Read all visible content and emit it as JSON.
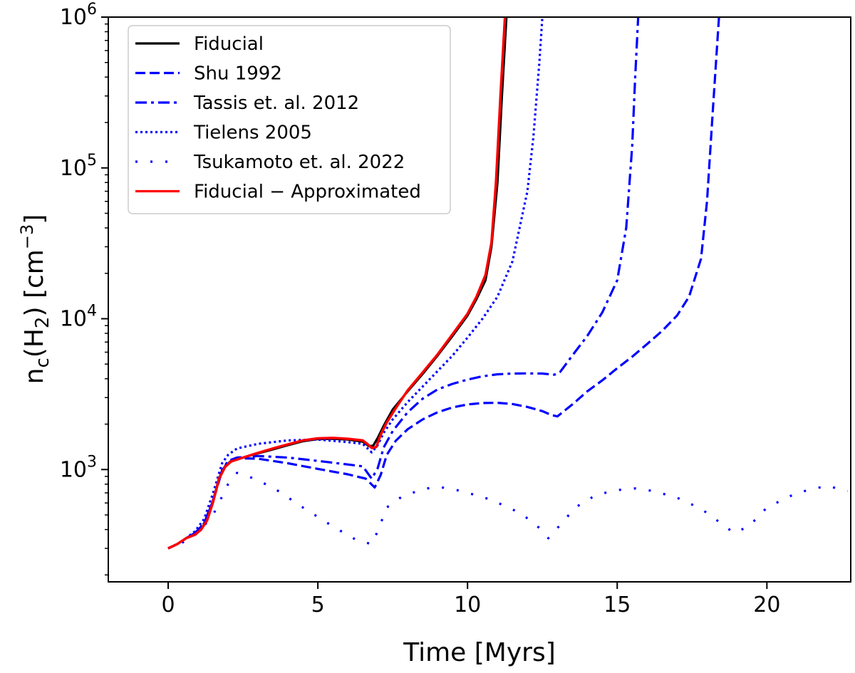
{
  "chart_data": {
    "type": "line",
    "title": "",
    "xlabel": "Time [Myrs]",
    "ylabel_main": "n",
    "ylabel_sub": "c",
    "ylabel_mid": "(H",
    "ylabel_mid_sub": "2",
    "ylabel_tail": ") [cm",
    "ylabel_sup": "−3",
    "ylabel_end": "]",
    "yscale": "log",
    "xlim": [
      -2,
      22.8
    ],
    "ylim": [
      180,
      1000000
    ],
    "grid": false,
    "legend_position": "top-left",
    "xticks": [
      0,
      5,
      10,
      15,
      20
    ],
    "xtick_labels": [
      "0",
      "5",
      "10",
      "15",
      "20"
    ],
    "yticks_major": [
      1000,
      10000,
      100000,
      1000000
    ],
    "ytick_labels": [
      {
        "base": "10",
        "exp": "3"
      },
      {
        "base": "10",
        "exp": "4"
      },
      {
        "base": "10",
        "exp": "5"
      },
      {
        "base": "10",
        "exp": "6"
      }
    ],
    "series": [
      {
        "name": "Fiducial",
        "color": "#000000",
        "style": "solid",
        "x": [
          0,
          0.3,
          0.6,
          0.9,
          1.1,
          1.3,
          1.5,
          1.7,
          1.9,
          2.1,
          2.5,
          3.0,
          3.5,
          4.0,
          4.5,
          5.0,
          5.5,
          6.0,
          6.5,
          6.7,
          6.85,
          7.0,
          7.2,
          7.5,
          8.0,
          8.5,
          9.0,
          9.5,
          10.0,
          10.3,
          10.6,
          10.8,
          11.0,
          11.15,
          11.3
        ],
        "y": [
          300,
          320,
          350,
          370,
          400,
          470,
          620,
          880,
          1050,
          1140,
          1200,
          1280,
          1360,
          1450,
          1540,
          1590,
          1600,
          1580,
          1530,
          1430,
          1440,
          1620,
          1950,
          2500,
          3300,
          4300,
          5700,
          7700,
          10500,
          13500,
          18000,
          30000,
          80000,
          300000,
          1000000
        ]
      },
      {
        "name": "Shu 1992",
        "color": "#0000ff",
        "style": "dashed",
        "x": [
          0,
          0.3,
          0.6,
          0.9,
          1.2,
          1.5,
          1.8,
          2.0,
          2.3,
          3.0,
          4.0,
          5.0,
          6.0,
          6.6,
          6.9,
          7.1,
          7.3,
          7.6,
          8.0,
          8.5,
          9.0,
          9.5,
          10.0,
          10.5,
          11.0,
          11.5,
          12.0,
          12.5,
          12.8,
          13.0,
          13.5,
          14.0,
          14.5,
          15.0,
          15.5,
          16.0,
          16.5,
          17.0,
          17.4,
          17.8,
          18.0,
          18.2,
          18.4
        ],
        "y": [
          300,
          320,
          350,
          380,
          440,
          620,
          980,
          1130,
          1190,
          1180,
          1100,
          1010,
          930,
          870,
          760,
          920,
          1250,
          1550,
          1850,
          2150,
          2400,
          2580,
          2700,
          2760,
          2770,
          2720,
          2600,
          2440,
          2300,
          2250,
          2700,
          3300,
          3900,
          4700,
          5600,
          6800,
          8300,
          10500,
          14000,
          25000,
          60000,
          250000,
          1000000
        ]
      },
      {
        "name": "Tassis et. al. 2012",
        "color": "#0000ff",
        "style": "dashdot",
        "x": [
          0,
          0.3,
          0.6,
          0.9,
          1.2,
          1.5,
          1.8,
          2.0,
          2.3,
          3.0,
          4.0,
          5.0,
          6.0,
          6.5,
          6.8,
          7.0,
          7.2,
          7.5,
          8.0,
          8.5,
          9.0,
          9.5,
          10.0,
          10.5,
          11.0,
          11.5,
          12.0,
          12.5,
          12.9,
          13.1,
          13.5,
          14.0,
          14.5,
          15.0,
          15.3,
          15.5,
          15.6,
          15.7
        ],
        "y": [
          300,
          320,
          350,
          380,
          440,
          630,
          990,
          1140,
          1200,
          1230,
          1200,
          1140,
          1080,
          1050,
          870,
          1020,
          1400,
          1800,
          2400,
          2950,
          3400,
          3700,
          3950,
          4150,
          4280,
          4330,
          4340,
          4330,
          4250,
          4450,
          5700,
          7700,
          11000,
          18000,
          40000,
          140000,
          400000,
          1000000
        ]
      },
      {
        "name": "Tielens 2005",
        "color": "#0000ff",
        "style": "dotted",
        "x": [
          0,
          0.3,
          0.6,
          0.9,
          1.2,
          1.5,
          1.8,
          2.0,
          2.3,
          3.0,
          4.0,
          5.0,
          6.0,
          6.5,
          6.8,
          7.0,
          7.2,
          7.5,
          8.0,
          8.5,
          9.0,
          9.5,
          10.0,
          10.5,
          11.0,
          11.5,
          12.0,
          12.2,
          12.4,
          12.5
        ],
        "y": [
          300,
          320,
          350,
          390,
          470,
          700,
          1100,
          1250,
          1380,
          1480,
          1560,
          1580,
          1520,
          1480,
          1300,
          1450,
          1750,
          2150,
          2800,
          3550,
          4500,
          5700,
          7500,
          10000,
          14000,
          24000,
          70000,
          160000,
          500000,
          1000000
        ]
      },
      {
        "name": "Tsukamoto et. al. 2022",
        "color": "#0000ff",
        "style": "sparse",
        "x": [
          0,
          0.5,
          1.0,
          1.5,
          2.0,
          2.3,
          2.8,
          3.5,
          4.5,
          5.5,
          6.3,
          6.8,
          7.0,
          7.3,
          7.8,
          8.5,
          9.0,
          9.8,
          10.8,
          11.8,
          12.4,
          12.7,
          13.1,
          13.6,
          14.3,
          15.0,
          15.6,
          16.2,
          17.0,
          17.8,
          18.4,
          18.9,
          19.4,
          20.0,
          21.0,
          22.0,
          22.7
        ],
        "y": [
          300,
          330,
          380,
          500,
          800,
          950,
          880,
          760,
          560,
          420,
          340,
          320,
          390,
          560,
          660,
          740,
          770,
          720,
          630,
          510,
          410,
          350,
          430,
          560,
          680,
          730,
          750,
          720,
          650,
          550,
          450,
          380,
          420,
          560,
          700,
          780,
          720
        ]
      },
      {
        "name": "Fiducial − Approximated",
        "color": "#ff0000",
        "style": "solid",
        "x": [
          0,
          0.3,
          0.6,
          0.9,
          1.1,
          1.3,
          1.5,
          1.7,
          1.9,
          2.1,
          2.5,
          3.0,
          3.5,
          4.0,
          4.5,
          5.0,
          5.5,
          6.0,
          6.5,
          6.65,
          6.8,
          6.95,
          7.1,
          7.3,
          7.6,
          8.0,
          8.5,
          9.0,
          9.5,
          10.0,
          10.3,
          10.6,
          10.8,
          10.95,
          11.1,
          11.25
        ],
        "y": [
          300,
          320,
          350,
          370,
          400,
          460,
          610,
          870,
          1040,
          1130,
          1200,
          1290,
          1380,
          1470,
          1560,
          1610,
          1620,
          1600,
          1560,
          1480,
          1390,
          1410,
          1700,
          2050,
          2550,
          3350,
          4400,
          5800,
          7900,
          10800,
          14000,
          19500,
          32000,
          80000,
          300000,
          1000000
        ]
      }
    ]
  }
}
